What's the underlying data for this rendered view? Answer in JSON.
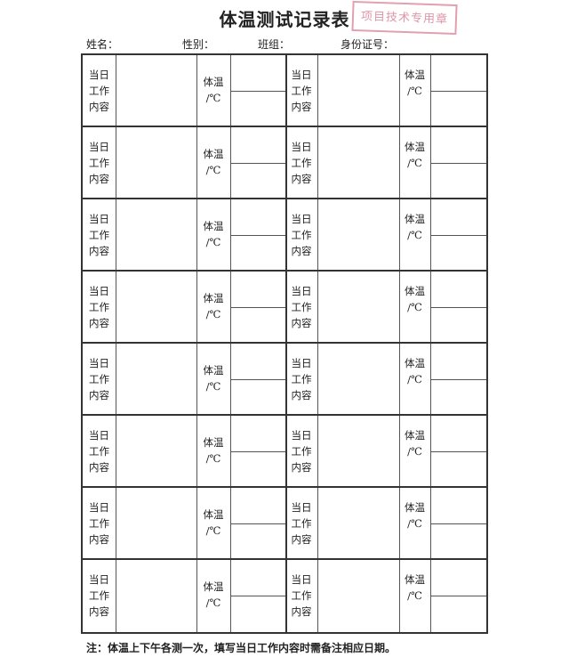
{
  "title": "体温测试记录表",
  "stamp": {
    "text": "项目技术专用章",
    "color": "#c8506e"
  },
  "fields": {
    "name": "姓名：",
    "gender": "性别：",
    "team": "班组：",
    "id_number": "身份证号："
  },
  "table": {
    "row_count": 8,
    "work_label": "当日\n工作\n内容",
    "temp_label": "体温\n/℃"
  },
  "note": "注：体温上下午各测一次，填写当日工作内容时需备注相应日期。"
}
